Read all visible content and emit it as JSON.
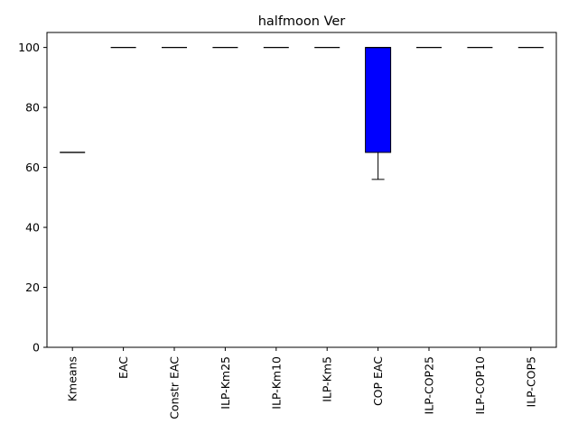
{
  "chart_data": {
    "type": "box",
    "title": "halfmoon Ver",
    "xlabel": "",
    "ylabel": "",
    "ylim": [
      0,
      105
    ],
    "yticks": [
      0,
      20,
      40,
      60,
      80,
      100
    ],
    "grid": false,
    "box_color": "#0000ff",
    "categories": [
      "Kmeans",
      "EAC",
      "Constr EAC",
      "ILP-Km25",
      "ILP-Km10",
      "ILP-Km5",
      "COP EAC",
      "ILP-COP25",
      "ILP-COP10",
      "ILP-COP5"
    ],
    "boxes": [
      {
        "label": "Kmeans",
        "min": 65,
        "q1": 65,
        "median": 65,
        "q3": 65,
        "max": 65
      },
      {
        "label": "EAC",
        "min": 100,
        "q1": 100,
        "median": 100,
        "q3": 100,
        "max": 100
      },
      {
        "label": "Constr EAC",
        "min": 100,
        "q1": 100,
        "median": 100,
        "q3": 100,
        "max": 100
      },
      {
        "label": "ILP-Km25",
        "min": 100,
        "q1": 100,
        "median": 100,
        "q3": 100,
        "max": 100
      },
      {
        "label": "ILP-Km10",
        "min": 100,
        "q1": 100,
        "median": 100,
        "q3": 100,
        "max": 100
      },
      {
        "label": "ILP-Km5",
        "min": 100,
        "q1": 100,
        "median": 100,
        "q3": 100,
        "max": 100
      },
      {
        "label": "COP EAC",
        "min": 56,
        "q1": 65,
        "median": 100,
        "q3": 100,
        "max": 100
      },
      {
        "label": "ILP-COP25",
        "min": 100,
        "q1": 100,
        "median": 100,
        "q3": 100,
        "max": 100
      },
      {
        "label": "ILP-COP10",
        "min": 100,
        "q1": 100,
        "median": 100,
        "q3": 100,
        "max": 100
      },
      {
        "label": "ILP-COP5",
        "min": 100,
        "q1": 100,
        "median": 100,
        "q3": 100,
        "max": 100
      }
    ]
  }
}
